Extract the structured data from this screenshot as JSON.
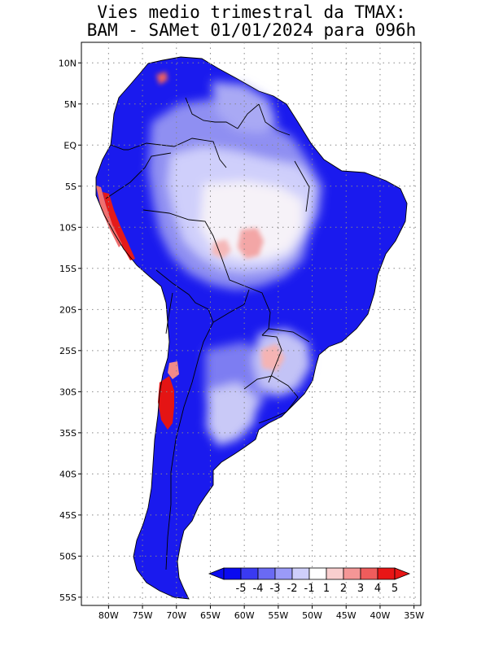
{
  "title": {
    "line1": "Vies medio trimestral da TMAX:",
    "line2": "BAM - SAMet 01/01/2024  para 096h"
  },
  "axes": {
    "lat_labels": [
      "10N",
      "5N",
      "EQ",
      "5S",
      "10S",
      "15S",
      "20S",
      "25S",
      "30S",
      "35S",
      "40S",
      "45S",
      "50S",
      "55S"
    ],
    "lon_labels": [
      "80W",
      "75W",
      "70W",
      "65W",
      "60W",
      "55W",
      "50W",
      "45W",
      "40W",
      "35W"
    ],
    "lat_range": [
      -56,
      12.5
    ],
    "lon_range": [
      -84,
      -34
    ],
    "grid": "dotted"
  },
  "colorbar": {
    "labels": [
      "-5",
      "-4",
      "-3",
      "-2",
      "-1",
      "1",
      "2",
      "3",
      "4",
      "5"
    ],
    "colors": [
      "#0a0af0",
      "#3a3af2",
      "#6a6af4",
      "#9a9af8",
      "#cfcffb",
      "#ffffff",
      "#f9cece",
      "#f49696",
      "#ef5c5c",
      "#e81616"
    ],
    "placement": "bottom-right"
  },
  "palette": {
    "strong_cold": "#1818ee",
    "cold": "#4646f0",
    "mild_cold": "#8c8cf2",
    "slight_cold": "#c6c6f8",
    "warm": "#f2a0a0",
    "strong_warm": "#e81616"
  }
}
